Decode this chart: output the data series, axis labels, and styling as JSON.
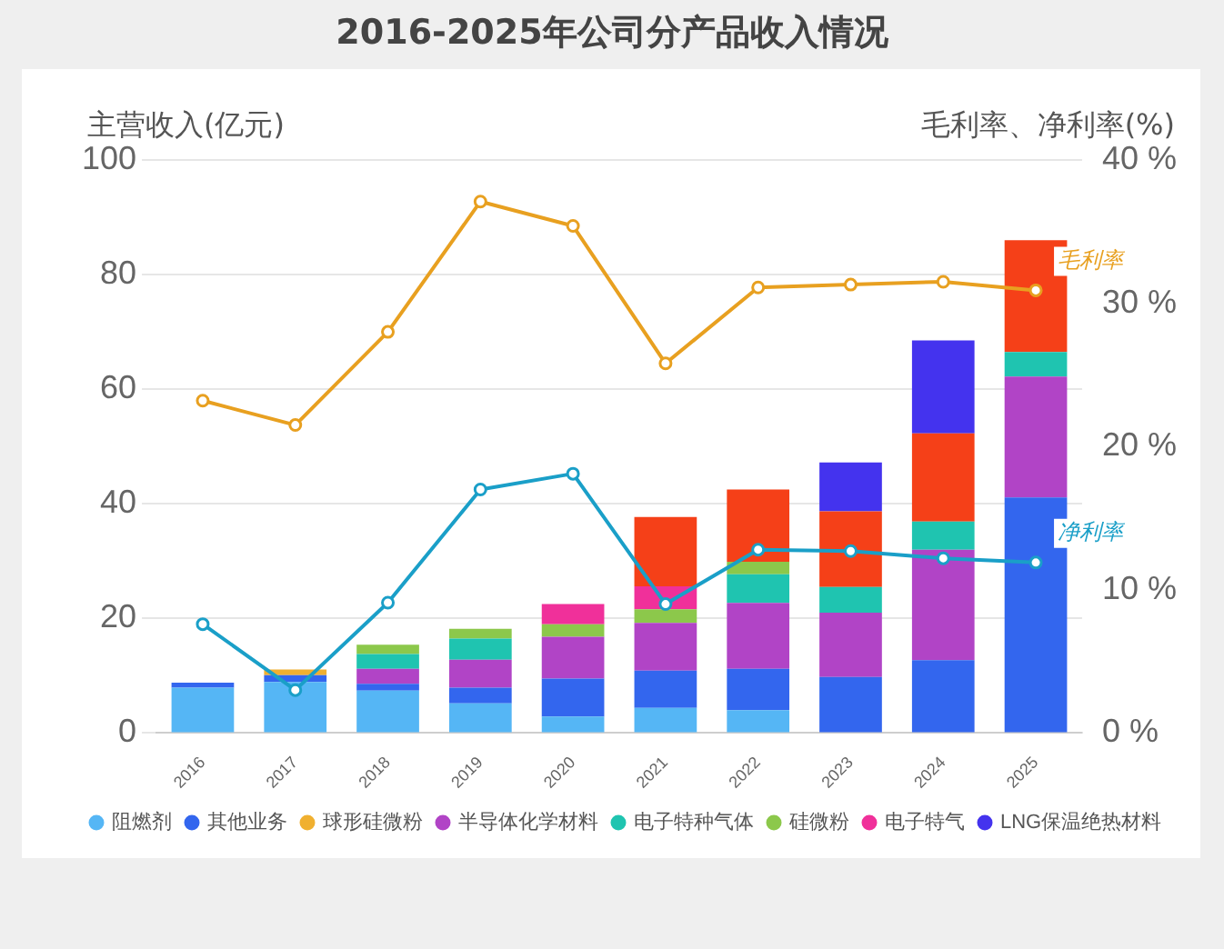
{
  "chart_data": {
    "type": "bar",
    "title": "2016-2025年公司分产品收入情况",
    "ylabel": "主营收入(亿元)",
    "y2label": "毛利率、净利率(%)",
    "categories": [
      "2016",
      "2017",
      "2018",
      "2019",
      "2020",
      "2021",
      "2022",
      "2023",
      "2024",
      "2025"
    ],
    "stacked": true,
    "legend": "bottom",
    "grid": "y",
    "marker": "circle",
    "ylim": [
      0,
      100
    ],
    "yticks": [
      0,
      20,
      40,
      60,
      80,
      100
    ],
    "y2lim": [
      0,
      40
    ],
    "y2ticks": [
      {
        "value": 0,
        "label": "0 %"
      },
      {
        "value": 10,
        "label": "10 %"
      },
      {
        "value": 20,
        "label": "20 %"
      },
      {
        "value": 30,
        "label": "30 %"
      },
      {
        "value": 40,
        "label": "40 %"
      }
    ],
    "series": [
      {
        "name": "阻燃剂",
        "color": "#55b6f5",
        "values": [
          7.9,
          8.9,
          7.4,
          5.2,
          2.9,
          4.4,
          4.0,
          null,
          null,
          null
        ]
      },
      {
        "name": "其他业务",
        "color": "#3366ee",
        "values": [
          0.9,
          1.2,
          1.2,
          2.7,
          6.6,
          6.5,
          7.2,
          9.8,
          12.7,
          41.1
        ]
      },
      {
        "name": "球形硅微粉",
        "color": "#f0b030",
        "values": [
          null,
          1.0,
          null,
          null,
          null,
          null,
          null,
          null,
          null,
          null
        ]
      },
      {
        "name": "半导体化学材料",
        "color": "#b144c6",
        "values": [
          null,
          null,
          2.6,
          4.9,
          7.3,
          8.3,
          11.5,
          11.2,
          19.3,
          21.1
        ]
      },
      {
        "name": "电子特种气体",
        "color": "#1fc4b0",
        "values": [
          null,
          null,
          2.6,
          3.7,
          null,
          null,
          5.0,
          4.5,
          4.9,
          4.3
        ]
      },
      {
        "name": "硅微粉",
        "color": "#8cc84b",
        "values": [
          null,
          null,
          1.6,
          1.7,
          2.2,
          2.4,
          2.2,
          null,
          null,
          null
        ]
      },
      {
        "name": "电子特气",
        "color": "#f0309a",
        "values": [
          null,
          null,
          null,
          null,
          3.5,
          4.0,
          null,
          null,
          null,
          null
        ]
      },
      {
        "color": "#f54018",
        "values": [
          null,
          null,
          null,
          null,
          null,
          12.1,
          12.6,
          13.2,
          15.4,
          19.5
        ]
      },
      {
        "name": "LNG保温绝热材料",
        "color": "#4433ee",
        "values": [
          null,
          null,
          null,
          null,
          null,
          null,
          null,
          8.5,
          16.2,
          null
        ]
      },
      {
        "name": "毛利率",
        "type": "line",
        "axis": "y2",
        "color": "#e8a020",
        "values": [
          23.2,
          21.5,
          28.0,
          37.1,
          35.4,
          25.8,
          31.1,
          31.3,
          31.5,
          30.9
        ]
      },
      {
        "name": "净利率",
        "type": "line",
        "axis": "y2",
        "color": "#1a9fc8",
        "values": [
          7.6,
          3.0,
          9.1,
          17.0,
          18.1,
          9.0,
          12.8,
          12.7,
          12.2,
          11.9
        ]
      }
    ]
  }
}
